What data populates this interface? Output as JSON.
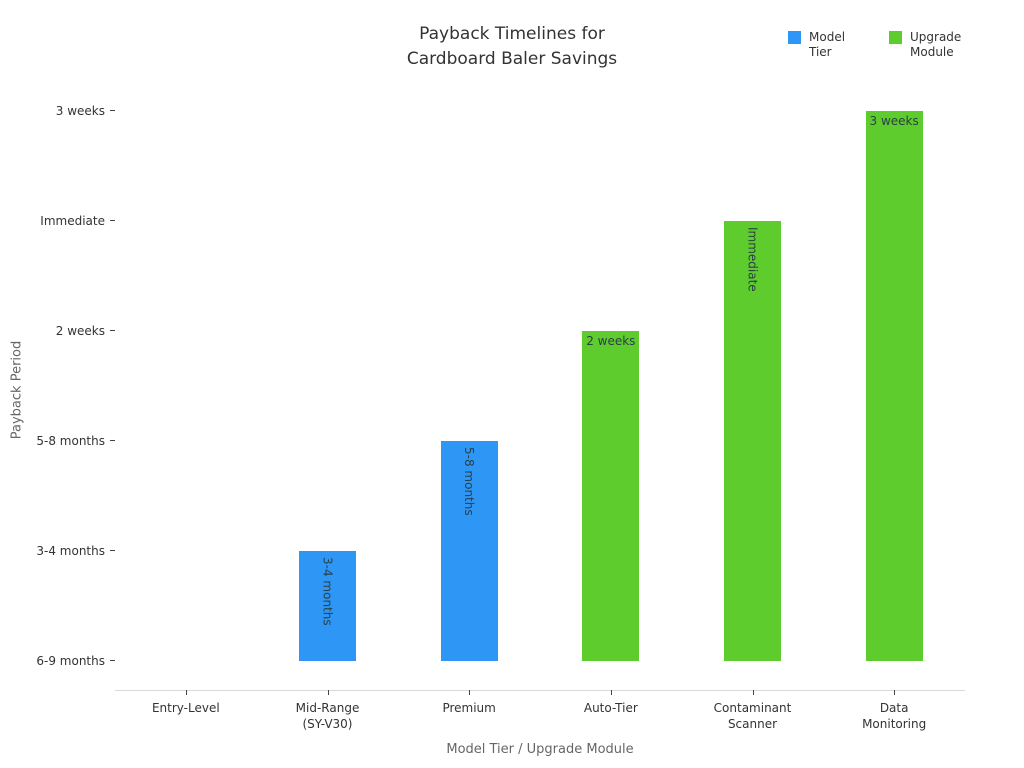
{
  "chart_data": {
    "type": "bar",
    "title": "Payback Timelines for Cardboard Baler Savings",
    "title_lines": [
      "Payback Timelines for",
      "Cardboard Baler Savings"
    ],
    "xlabel": "Model Tier / Upgrade Module",
    "ylabel": "Payback Period",
    "y_axis_type": "category",
    "grid": false,
    "legend_position": "top-right",
    "categories": [
      "Entry-Level",
      "Mid-Range\n(SY-V30)",
      "Premium",
      "Auto-Tier",
      "Contaminant\nScanner",
      "Data\nMonitoring"
    ],
    "y_tick_labels": [
      "6-9 months",
      "3-4 months",
      "5-8 months",
      "2 weeks",
      "Immediate",
      "3 weeks"
    ],
    "series": [
      {
        "name": "Model Tier",
        "color": "#2E96F5"
      },
      {
        "name": "Upgrade Module",
        "color": "#5FCC2E"
      }
    ],
    "bars": [
      {
        "category": "Entry-Level",
        "series": "Model Tier",
        "value_label": "6-9 months",
        "value_index": 0,
        "bar_label": "",
        "label_rotated": false
      },
      {
        "category": "Mid-Range\n(SY-V30)",
        "series": "Model Tier",
        "value_label": "3-4 months",
        "value_index": 1,
        "bar_label": "3-4 months",
        "label_rotated": true
      },
      {
        "category": "Premium",
        "series": "Model Tier",
        "value_label": "5-8 months",
        "value_index": 2,
        "bar_label": "5-8 months",
        "label_rotated": true
      },
      {
        "category": "Auto-Tier",
        "series": "Upgrade Module",
        "value_label": "2 weeks",
        "value_index": 3,
        "bar_label": "2 weeks",
        "label_rotated": false
      },
      {
        "category": "Contaminant\nScanner",
        "series": "Upgrade Module",
        "value_label": "Immediate",
        "value_index": 4,
        "bar_label": "Immediate",
        "label_rotated": true
      },
      {
        "category": "Data\nMonitoring",
        "series": "Upgrade Module",
        "value_label": "3 weeks",
        "value_index": 5,
        "bar_label": "3 weeks",
        "label_rotated": false
      }
    ]
  }
}
